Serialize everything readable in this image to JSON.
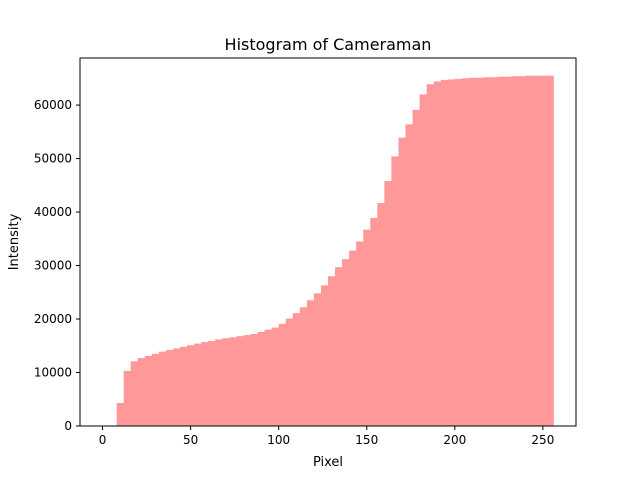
{
  "chart_data": {
    "type": "bar",
    "title": "Histogram of Cameraman",
    "xlabel": "Pixel",
    "ylabel": "Intensity",
    "xlim": [
      -12.8,
      268.8
    ],
    "ylim": [
      0,
      68800
    ],
    "xticks": [
      0,
      50,
      100,
      150,
      200,
      250
    ],
    "yticks": [
      0,
      10000,
      20000,
      30000,
      40000,
      50000,
      60000
    ],
    "ytick_labels": [
      "0",
      "10000",
      "20000",
      "30000",
      "40000",
      "50000",
      "60000"
    ],
    "grid": false,
    "bar_color": "#ff9999",
    "bin_edges": [
      8,
      12,
      16,
      20,
      24,
      28,
      32,
      36,
      40,
      44,
      48,
      52,
      56,
      60,
      64,
      68,
      72,
      76,
      80,
      84,
      88,
      92,
      96,
      100,
      104,
      108,
      112,
      116,
      120,
      124,
      128,
      132,
      136,
      140,
      144,
      148,
      152,
      156,
      160,
      164,
      168,
      172,
      176,
      180,
      184,
      188,
      192,
      196,
      200,
      204,
      208,
      212,
      216,
      220,
      224,
      228,
      232,
      236,
      240,
      244,
      248,
      252,
      256
    ],
    "values": [
      4300,
      10300,
      12100,
      12700,
      13100,
      13500,
      13900,
      14200,
      14500,
      14800,
      15100,
      15400,
      15700,
      15900,
      16200,
      16400,
      16600,
      16800,
      17000,
      17200,
      17600,
      18000,
      18400,
      19100,
      20100,
      21100,
      22200,
      23500,
      24800,
      26300,
      28000,
      29700,
      31200,
      32800,
      34500,
      36700,
      38900,
      41700,
      45800,
      50400,
      53900,
      56400,
      59100,
      62000,
      63900,
      64400,
      64700,
      64800,
      64900,
      65000,
      65100,
      65100,
      65200,
      65200,
      65300,
      65300,
      65400,
      65400,
      65500,
      65500,
      65500,
      65500
    ]
  }
}
